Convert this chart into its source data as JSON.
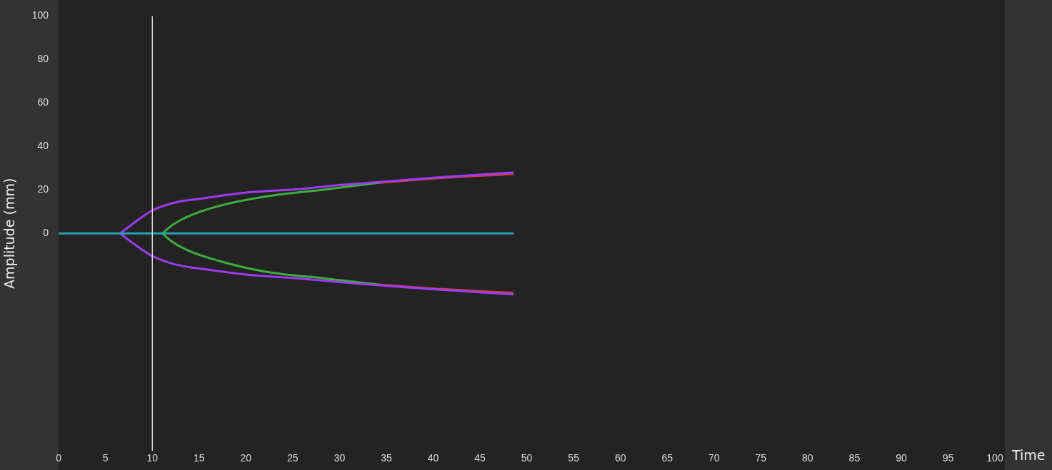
{
  "chart_data": {
    "type": "line",
    "xlabel": "Time",
    "ylabel": "Amplitude (mm)",
    "xlim": [
      0,
      100
    ],
    "xticks": [
      0,
      5,
      10,
      15,
      20,
      25,
      30,
      35,
      40,
      45,
      50,
      55,
      60,
      65,
      70,
      75,
      80,
      85,
      90,
      95,
      100
    ],
    "ylim": [
      -100,
      100
    ],
    "yticks": [
      0,
      20,
      40,
      60,
      80,
      100
    ],
    "grid": false,
    "legend": false,
    "marker": "none",
    "line_style": "solid",
    "ref_lines": [
      {
        "axis": "x",
        "value": 10,
        "color": "#ffffff"
      }
    ],
    "series": [
      {
        "color": "#d03c3c",
        "x": [
          34.2,
          41,
          48.5
        ],
        "values": [
          23.3,
          25.5,
          27.3
        ]
      },
      {
        "color": "#d03c3c",
        "x": [
          34.2,
          41,
          48.5
        ],
        "values": [
          -23.5,
          -25.6,
          -27.3
        ]
      },
      {
        "color": "#3fae3f",
        "x": [
          11.06,
          12.2,
          13.8,
          17.1,
          22,
          28.6,
          34.2
        ],
        "values": [
          0,
          4,
          7.8,
          12.6,
          16.9,
          20.3,
          23.3
        ]
      },
      {
        "color": "#3fae3f",
        "x": [
          11.06,
          12.2,
          13.8,
          17.1,
          22,
          28.6,
          34.2
        ],
        "values": [
          0,
          -4,
          -7.8,
          -12.6,
          -17.5,
          -20.8,
          -23.5
        ]
      },
      {
        "color": "#9b3cf0",
        "x": [
          6.56,
          8,
          10,
          12.5,
          15.5,
          20,
          25.3,
          30,
          35.2,
          41,
          48.5
        ],
        "values": [
          0,
          4.7,
          10.6,
          14.3,
          16.2,
          18.8,
          20.3,
          22.2,
          24,
          25.9,
          28
        ]
      },
      {
        "color": "#9b3cf0",
        "x": [
          6.56,
          8,
          10,
          12.5,
          15.5,
          20,
          25.3,
          30,
          35.2,
          41,
          48.5
        ],
        "values": [
          0,
          -4.7,
          -10.4,
          -14.3,
          -16.4,
          -18.9,
          -20.6,
          -22.4,
          -24.2,
          -26,
          -28
        ]
      },
      {
        "color": "#2a9fb5",
        "x": [
          0,
          48.5
        ],
        "values": [
          0,
          0
        ]
      }
    ]
  }
}
